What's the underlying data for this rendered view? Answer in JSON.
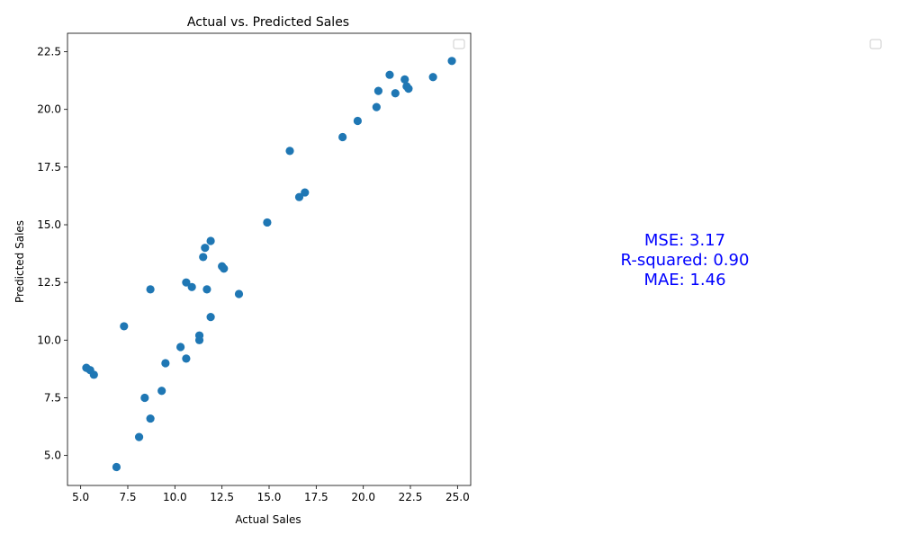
{
  "chart_data": {
    "type": "scatter",
    "title": "Actual vs. Predicted Sales",
    "xlabel": "Actual Sales",
    "ylabel": "Predicted Sales",
    "xlim": [
      4.3,
      25.7
    ],
    "ylim": [
      3.7,
      23.3
    ],
    "xticks": [
      "5.0",
      "7.5",
      "10.0",
      "12.5",
      "15.0",
      "17.5",
      "20.0",
      "22.5",
      "25.0"
    ],
    "yticks": [
      "5.0",
      "7.5",
      "10.0",
      "12.5",
      "15.0",
      "17.5",
      "20.0",
      "22.5"
    ],
    "grid": false,
    "legend": "upper-right (empty)",
    "marker_color": "#1f77b4",
    "series": [
      {
        "points": [
          [
            24.7,
            22.1
          ],
          [
            21.4,
            21.5
          ],
          [
            22.2,
            21.3
          ],
          [
            23.7,
            21.4
          ],
          [
            22.3,
            21.0
          ],
          [
            22.4,
            20.9
          ],
          [
            20.8,
            20.8
          ],
          [
            21.7,
            20.7
          ],
          [
            20.7,
            20.1
          ],
          [
            19.7,
            19.5
          ],
          [
            18.9,
            18.8
          ],
          [
            16.1,
            18.2
          ],
          [
            16.9,
            16.4
          ],
          [
            16.6,
            16.2
          ],
          [
            14.9,
            15.1
          ],
          [
            11.9,
            14.3
          ],
          [
            11.6,
            14.0
          ],
          [
            11.5,
            13.6
          ],
          [
            12.5,
            13.2
          ],
          [
            12.6,
            13.1
          ],
          [
            10.6,
            12.5
          ],
          [
            10.9,
            12.3
          ],
          [
            8.7,
            12.2
          ],
          [
            11.7,
            12.2
          ],
          [
            13.4,
            12.0
          ],
          [
            11.9,
            11.0
          ],
          [
            7.3,
            10.6
          ],
          [
            11.3,
            10.2
          ],
          [
            11.3,
            10.0
          ],
          [
            10.3,
            9.7
          ],
          [
            10.6,
            9.2
          ],
          [
            9.5,
            9.0
          ],
          [
            5.3,
            8.8
          ],
          [
            5.5,
            8.7
          ],
          [
            5.7,
            8.5
          ],
          [
            9.3,
            7.8
          ],
          [
            8.4,
            7.5
          ],
          [
            8.7,
            6.6
          ],
          [
            8.1,
            5.8
          ],
          [
            6.9,
            4.5
          ]
        ]
      }
    ]
  },
  "metrics": {
    "mse": "MSE: 3.17",
    "r2": "R-squared: 0.90",
    "mae": "MAE: 1.46",
    "color": "#0000ff"
  }
}
